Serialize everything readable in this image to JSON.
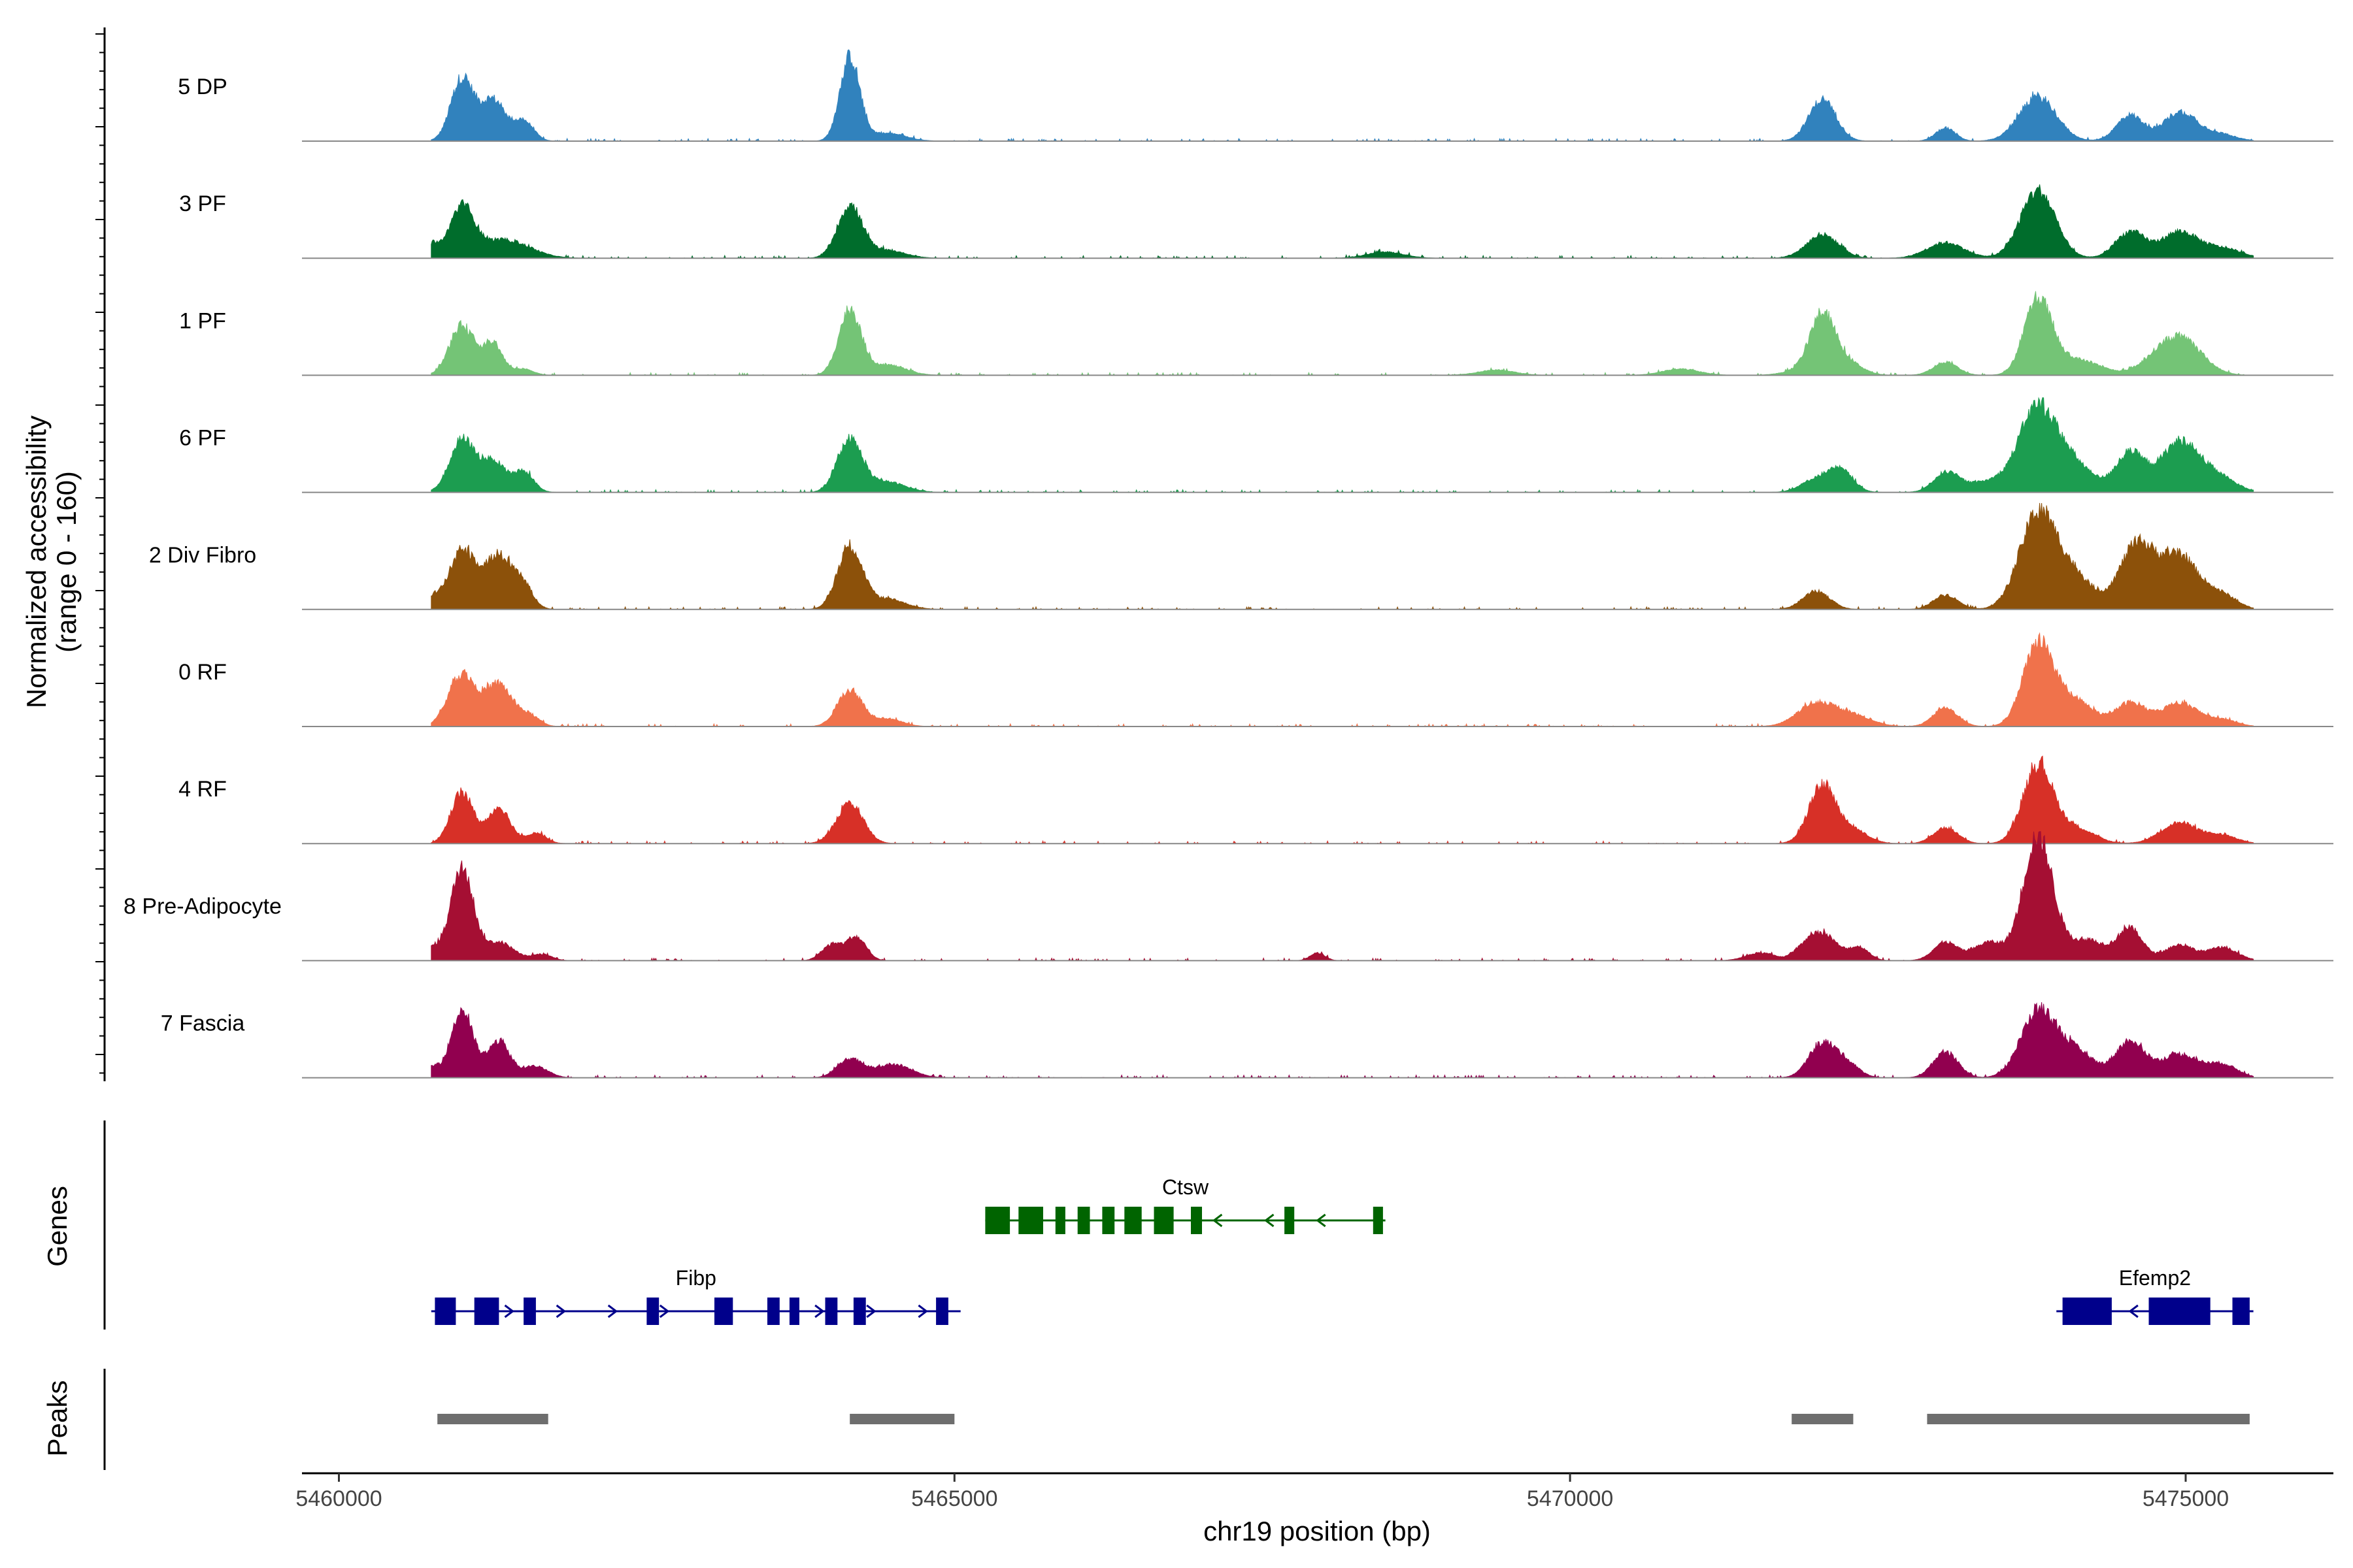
{
  "chart_data": {
    "type": "area",
    "title": "",
    "chromosome": "chr19",
    "xlabel": "chr19 position (bp)",
    "ylabel_line1": "Normalized accessibility",
    "ylabel_line2": "(range 0 - 160)",
    "y_range": [
      0,
      160
    ],
    "xlim": [
      5459700,
      5476200
    ],
    "x_ticks": [
      5460000,
      5465000,
      5470000,
      5475000
    ],
    "x_tick_labels": [
      "5460000",
      "5465000",
      "5470000",
      "5475000"
    ],
    "region": [
      5460750,
      5475550
    ],
    "tracks": [
      {
        "label": "5 DP",
        "color": "#3182bd",
        "peaks": [
          [
            5461000,
            120,
            90
          ],
          [
            5461250,
            80,
            100
          ],
          [
            5461500,
            38,
            80
          ],
          [
            5464150,
            160,
            80
          ],
          [
            5464450,
            15,
            150
          ],
          [
            5472050,
            80,
            110
          ],
          [
            5473050,
            25,
            80
          ],
          [
            5473800,
            85,
            150
          ],
          [
            5474550,
            50,
            110
          ],
          [
            5474950,
            55,
            130
          ],
          [
            5475250,
            15,
            140
          ]
        ]
      },
      {
        "label": "3 PF",
        "color": "#006d2c",
        "peaks": [
          [
            5460750,
            25,
            60
          ],
          [
            5461000,
            95,
            100
          ],
          [
            5461350,
            35,
            200
          ],
          [
            5464150,
            100,
            100
          ],
          [
            5464450,
            15,
            150
          ],
          [
            5468500,
            12,
            150
          ],
          [
            5472050,
            45,
            130
          ],
          [
            5473050,
            30,
            150
          ],
          [
            5473800,
            130,
            140
          ],
          [
            5474550,
            50,
            120
          ],
          [
            5474950,
            50,
            150
          ],
          [
            5475300,
            18,
            150
          ]
        ]
      },
      {
        "label": "1 PF",
        "color": "#74c476",
        "peaks": [
          [
            5461000,
            95,
            100
          ],
          [
            5461250,
            60,
            80
          ],
          [
            5461500,
            12,
            80
          ],
          [
            5464150,
            125,
            90
          ],
          [
            5464450,
            20,
            150
          ],
          [
            5469400,
            10,
            150
          ],
          [
            5470900,
            12,
            150
          ],
          [
            5471900,
            10,
            150
          ],
          [
            5472050,
            110,
            100
          ],
          [
            5472250,
            25,
            120
          ],
          [
            5473050,
            25,
            100
          ],
          [
            5473800,
            140,
            110
          ],
          [
            5474100,
            30,
            200
          ],
          [
            5474800,
            35,
            150
          ],
          [
            5475000,
            55,
            160
          ]
        ]
      },
      {
        "label": "6 PF",
        "color": "#1c9d50",
        "peaks": [
          [
            5461000,
            100,
            100
          ],
          [
            5461250,
            60,
            100
          ],
          [
            5461500,
            40,
            80
          ],
          [
            5464150,
            100,
            100
          ],
          [
            5464450,
            20,
            150
          ],
          [
            5472000,
            25,
            120
          ],
          [
            5472200,
            40,
            100
          ],
          [
            5473050,
            35,
            100
          ],
          [
            5473400,
            20,
            200
          ],
          [
            5473800,
            160,
            150
          ],
          [
            5474100,
            50,
            150
          ],
          [
            5474550,
            75,
            120
          ],
          [
            5474950,
            95,
            150
          ],
          [
            5475250,
            30,
            150
          ]
        ]
      },
      {
        "label": "2 Div Fibro",
        "color": "#8c510a",
        "peaks": [
          [
            5460750,
            20,
            60
          ],
          [
            5461000,
            110,
            110
          ],
          [
            5461300,
            100,
            120
          ],
          [
            5461500,
            35,
            80
          ],
          [
            5464150,
            120,
            100
          ],
          [
            5464450,
            20,
            150
          ],
          [
            5472000,
            35,
            110
          ],
          [
            5473050,
            28,
            100
          ],
          [
            5473800,
            180,
            150
          ],
          [
            5474100,
            60,
            150
          ],
          [
            5474600,
            120,
            140
          ],
          [
            5474950,
            100,
            160
          ],
          [
            5475300,
            25,
            120
          ]
        ]
      },
      {
        "label": "0 RF",
        "color": "#f0724b",
        "peaks": [
          [
            5461000,
            100,
            110
          ],
          [
            5461300,
            80,
            110
          ],
          [
            5461550,
            20,
            80
          ],
          [
            5464150,
            70,
            100
          ],
          [
            5464450,
            15,
            120
          ],
          [
            5472000,
            45,
            150
          ],
          [
            5472300,
            20,
            150
          ],
          [
            5473050,
            35,
            100
          ],
          [
            5473800,
            160,
            120
          ],
          [
            5474100,
            50,
            150
          ],
          [
            5474550,
            45,
            120
          ],
          [
            5474950,
            45,
            150
          ],
          [
            5475300,
            12,
            120
          ]
        ]
      },
      {
        "label": "4 RF",
        "color": "#d73027",
        "peaks": [
          [
            5461000,
            100,
            90
          ],
          [
            5461300,
            70,
            90
          ],
          [
            5461600,
            20,
            80
          ],
          [
            5464150,
            75,
            110
          ],
          [
            5472050,
            110,
            110
          ],
          [
            5472300,
            25,
            120
          ],
          [
            5473050,
            30,
            100
          ],
          [
            5473800,
            150,
            120
          ],
          [
            5474100,
            30,
            150
          ],
          [
            5474950,
            40,
            150
          ],
          [
            5475300,
            15,
            120
          ]
        ]
      },
      {
        "label": "8 Pre-Adipocyte",
        "color": "#a50f33",
        "peaks": [
          [
            5460750,
            25,
            80
          ],
          [
            5461000,
            180,
            90
          ],
          [
            5461300,
            35,
            120
          ],
          [
            5461650,
            12,
            80
          ],
          [
            5464000,
            30,
            80
          ],
          [
            5464200,
            45,
            80
          ],
          [
            5467950,
            15,
            60
          ],
          [
            5471550,
            15,
            120
          ],
          [
            5471900,
            15,
            80
          ],
          [
            5472050,
            50,
            120
          ],
          [
            5472350,
            25,
            80
          ],
          [
            5473050,
            35,
            100
          ],
          [
            5473400,
            35,
            120
          ],
          [
            5473800,
            240,
            120
          ],
          [
            5474200,
            40,
            150
          ],
          [
            5474550,
            60,
            100
          ],
          [
            5474950,
            30,
            120
          ],
          [
            5475300,
            25,
            120
          ]
        ]
      },
      {
        "label": "7 Fascia",
        "color": "#91004f",
        "peaks": [
          [
            5460750,
            20,
            60
          ],
          [
            5461000,
            130,
            90
          ],
          [
            5461300,
            70,
            90
          ],
          [
            5461600,
            22,
            100
          ],
          [
            5464150,
            35,
            100
          ],
          [
            5464500,
            25,
            150
          ],
          [
            5472050,
            65,
            110
          ],
          [
            5472250,
            25,
            100
          ],
          [
            5473050,
            50,
            100
          ],
          [
            5473800,
            125,
            140
          ],
          [
            5474100,
            50,
            150
          ],
          [
            5474550,
            70,
            120
          ],
          [
            5474950,
            45,
            150
          ],
          [
            5475300,
            25,
            120
          ]
        ]
      }
    ],
    "genes": [
      {
        "name": "Ctsw",
        "color": "#006400",
        "strand": "-",
        "start": 5465250,
        "end": 5468500,
        "exons": [
          [
            5465250,
            5465450
          ],
          [
            5465520,
            5465720
          ],
          [
            5465820,
            5465900
          ],
          [
            5466000,
            5466100
          ],
          [
            5466200,
            5466300
          ],
          [
            5466380,
            5466520
          ],
          [
            5466620,
            5466780
          ],
          [
            5466920,
            5467010
          ],
          [
            5467680,
            5467760
          ],
          [
            5468400,
            5468480
          ]
        ]
      },
      {
        "name": "Fibp",
        "color": "#00008b",
        "strand": "+",
        "start": 5460750,
        "end": 5465050,
        "exons": [
          [
            5460780,
            5460950
          ],
          [
            5461100,
            5461300
          ],
          [
            5461500,
            5461600
          ],
          [
            5462500,
            5462600
          ],
          [
            5463050,
            5463200
          ],
          [
            5463480,
            5463580
          ],
          [
            5463660,
            5463740
          ],
          [
            5463950,
            5464050
          ],
          [
            5464180,
            5464280
          ],
          [
            5464850,
            5464950
          ]
        ]
      },
      {
        "name": "Efemp2",
        "color": "#00008b",
        "strand": "-",
        "start": 5473950,
        "end": 5475550,
        "exons": [
          [
            5474000,
            5474400
          ],
          [
            5474700,
            5475200
          ],
          [
            5475380,
            5475520
          ]
        ]
      }
    ],
    "peaks_track": [
      [
        5460800,
        5461700
      ],
      [
        5464150,
        5465000
      ],
      [
        5471800,
        5472300
      ],
      [
        5472900,
        5475520
      ]
    ],
    "panel_labels": {
      "genes": "Genes",
      "peaks": "Peaks"
    }
  }
}
